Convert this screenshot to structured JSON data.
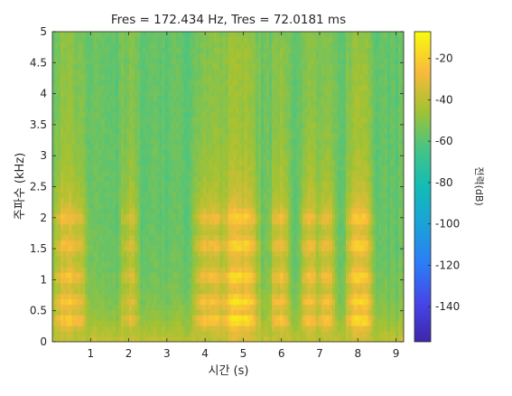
{
  "chart_data": {
    "type": "heatmap",
    "title": "Fres = 172.434 Hz, Tres = 72.0181 ms",
    "xlabel": "시간 (s)",
    "ylabel": "주파수 (kHz)",
    "xlim": [
      0,
      9.2
    ],
    "ylim": [
      0,
      5
    ],
    "x_ticks": [
      "1",
      "2",
      "3",
      "4",
      "5",
      "6",
      "7",
      "8",
      "9"
    ],
    "x_tick_values": [
      1,
      2,
      3,
      4,
      5,
      6,
      7,
      8,
      9
    ],
    "y_ticks": [
      "0",
      "0.5",
      "1",
      "1.5",
      "2",
      "2.5",
      "3",
      "3.5",
      "4",
      "4.5",
      "5"
    ],
    "y_tick_values": [
      0,
      0.5,
      1,
      1.5,
      2,
      2.5,
      3,
      3.5,
      4,
      4.5,
      5
    ],
    "colorbar": {
      "label": "전력(dB)",
      "range": [
        -157,
        -7
      ],
      "ticks": [
        "-20",
        "-40",
        "-60",
        "-80",
        "-100",
        "-120",
        "-140"
      ],
      "tick_values": [
        -20,
        -40,
        -60,
        -80,
        -100,
        -120,
        -140
      ],
      "colormap": "parula"
    },
    "background_db": -58,
    "low_freq_db": -38,
    "harmonic_bands_khz": [
      0.35,
      0.65,
      1.05,
      1.55,
      2.0
    ],
    "speech_segments": [
      {
        "t_start": 0.05,
        "t_end": 0.85,
        "power_db": -22
      },
      {
        "t_start": 1.85,
        "t_end": 2.2,
        "power_db": -32
      },
      {
        "t_start": 3.75,
        "t_end": 4.45,
        "power_db": -22
      },
      {
        "t_start": 4.5,
        "t_end": 5.35,
        "power_db": -14
      },
      {
        "t_start": 5.75,
        "t_end": 6.15,
        "power_db": -24
      },
      {
        "t_start": 6.55,
        "t_end": 6.9,
        "power_db": -24
      },
      {
        "t_start": 7.0,
        "t_end": 7.35,
        "power_db": -22
      },
      {
        "t_start": 7.75,
        "t_end": 8.35,
        "power_db": -16
      }
    ],
    "grid": false,
    "colors": {
      "axis": "#262626",
      "high": "#f9fb0e",
      "mid": "#3ab3ac",
      "low": "#3e26a8"
    }
  }
}
